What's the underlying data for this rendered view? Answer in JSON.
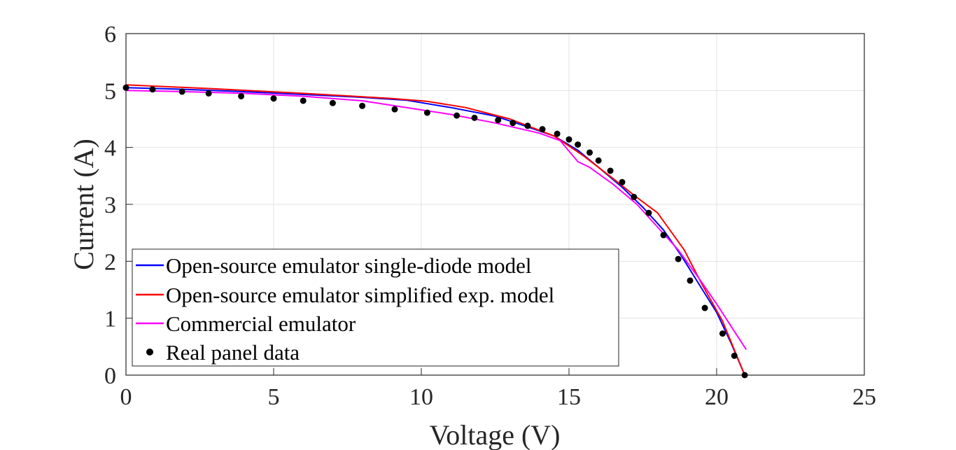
{
  "chart_data": {
    "type": "line",
    "xlabel": "Voltage (V)",
    "ylabel": "Current (A)",
    "xlim": [
      0,
      25
    ],
    "ylim": [
      0,
      6
    ],
    "xticks": [
      "0",
      "5",
      "10",
      "15",
      "20",
      "25"
    ],
    "yticks": [
      "0",
      "1",
      "2",
      "3",
      "4",
      "5",
      "6"
    ],
    "grid": true,
    "legend_position": "bottom-left",
    "series": [
      {
        "name": "Open-source emulator single-diode model",
        "style": "line",
        "color": "#0000ff",
        "x": [
          0,
          2,
          4,
          6,
          8,
          9.5,
          11,
          12.5,
          13.5,
          14.5,
          15.3,
          16,
          16.8,
          17.5,
          18.2,
          18.8,
          19.4,
          20,
          20.5,
          20.95
        ],
        "y": [
          5.05,
          5.02,
          4.98,
          4.93,
          4.88,
          4.83,
          4.7,
          4.55,
          4.38,
          4.2,
          3.95,
          3.65,
          3.3,
          2.95,
          2.55,
          2.1,
          1.6,
          1.1,
          0.55,
          0.0
        ]
      },
      {
        "name": "Open-source emulator simplified exp. model",
        "style": "line",
        "color": "#ff0000",
        "x": [
          0,
          3,
          6,
          9,
          10.2,
          11.5,
          13,
          14.5,
          15.5,
          16.5,
          17.3,
          18,
          18.9,
          19.5,
          20.2,
          20.95
        ],
        "y": [
          5.1,
          5.03,
          4.95,
          4.86,
          4.81,
          4.7,
          4.5,
          4.2,
          3.85,
          3.45,
          3.12,
          2.85,
          2.2,
          1.6,
          0.95,
          0.0
        ]
      },
      {
        "name": "Commercial emulator",
        "style": "line",
        "color": "#ff00ff",
        "x": [
          0,
          2,
          4,
          6,
          8,
          9.5,
          11,
          12.5,
          14,
          14.7,
          15.3,
          15.7,
          16.5,
          17.3,
          18,
          18.7,
          19.4,
          20,
          20.5,
          21
        ],
        "y": [
          5.0,
          4.98,
          4.95,
          4.9,
          4.82,
          4.7,
          4.58,
          4.43,
          4.25,
          4.12,
          3.75,
          3.65,
          3.35,
          3.0,
          2.6,
          2.2,
          1.7,
          1.25,
          0.85,
          0.45
        ]
      },
      {
        "name": "Real panel data",
        "style": "markers",
        "color": "#000000",
        "x": [
          0,
          0.9,
          1.9,
          2.8,
          3.9,
          5.0,
          6.0,
          7.0,
          8.0,
          9.1,
          10.2,
          11.2,
          11.8,
          12.6,
          13.1,
          13.6,
          14.1,
          14.6,
          15.0,
          15.3,
          15.7,
          16.0,
          16.4,
          16.8,
          17.2,
          17.7,
          18.2,
          18.7,
          19.1,
          19.6,
          20.2,
          20.6,
          20.95
        ],
        "y": [
          5.05,
          5.02,
          4.98,
          4.95,
          4.9,
          4.86,
          4.82,
          4.78,
          4.73,
          4.67,
          4.61,
          4.56,
          4.52,
          4.48,
          4.43,
          4.38,
          4.32,
          4.24,
          4.14,
          4.05,
          3.91,
          3.77,
          3.59,
          3.39,
          3.13,
          2.85,
          2.46,
          2.04,
          1.66,
          1.18,
          0.73,
          0.34,
          0.0
        ]
      }
    ]
  }
}
